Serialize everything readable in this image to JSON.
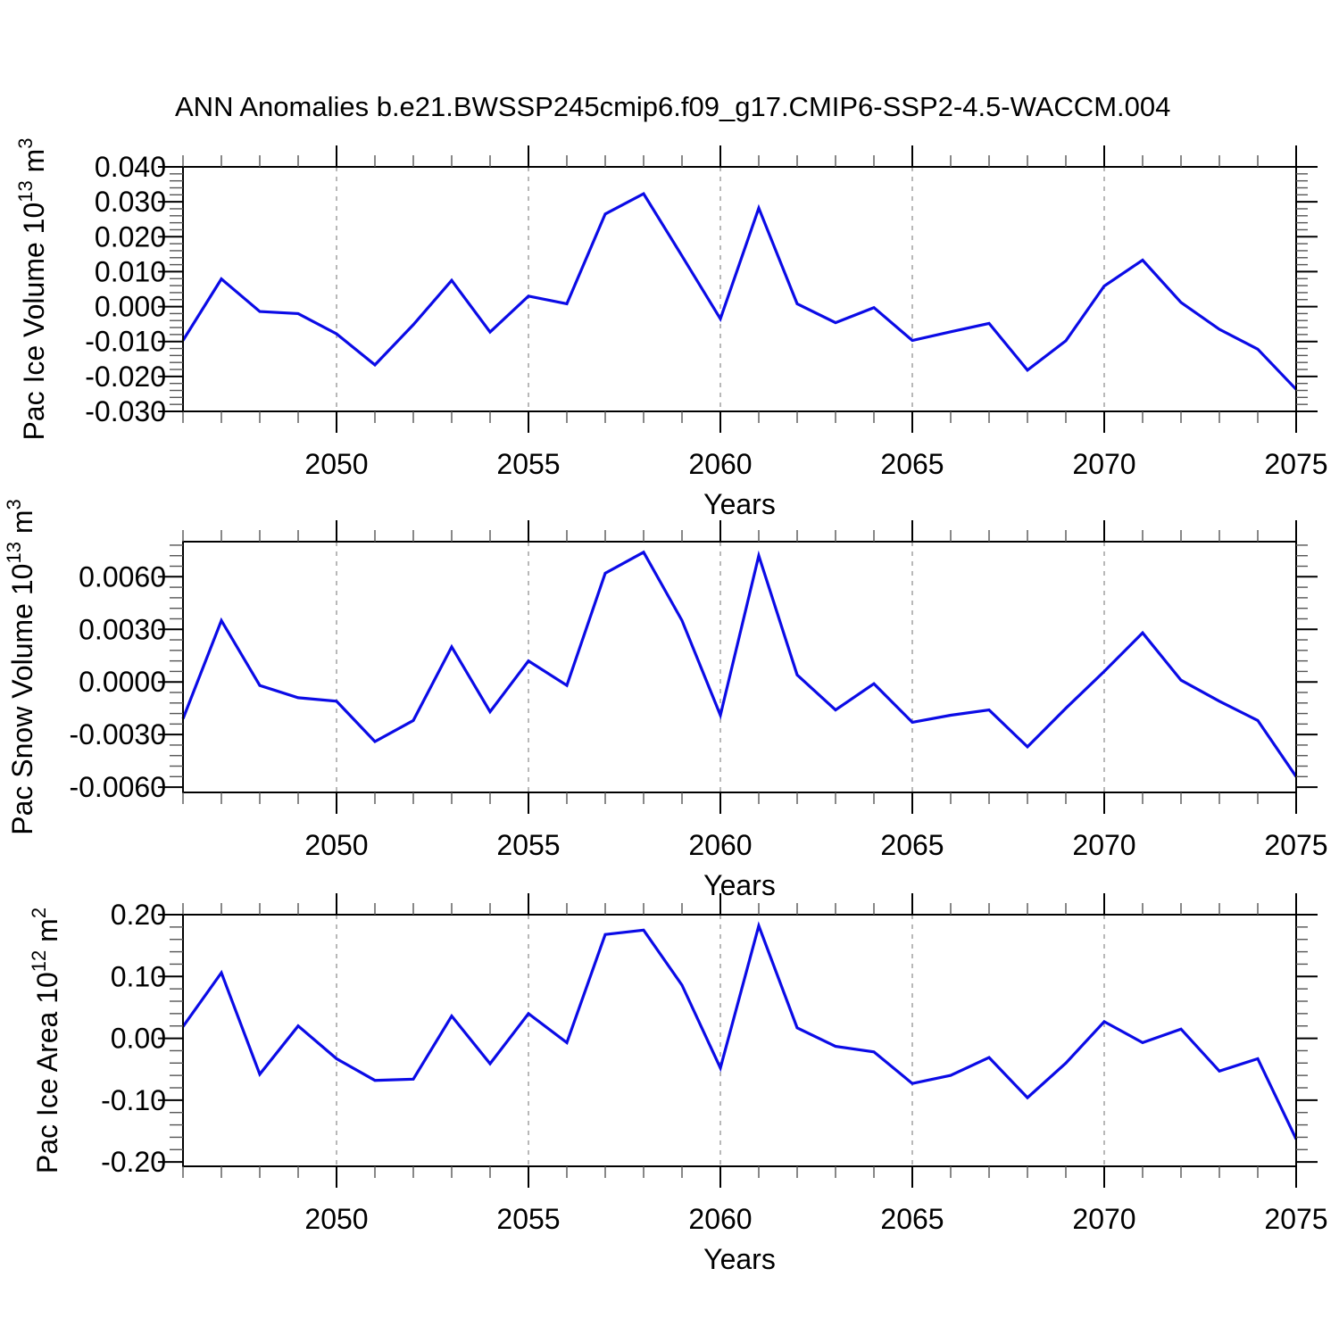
{
  "title": "ANN Anomalies b.e21.BWSSP245cmip6.f09_g17.CMIP6-SSP2-4.5-WACCM.004",
  "colors": {
    "line": "#0b0be6",
    "grid": "#999999",
    "axis": "#000000",
    "minor_tick": "#555555",
    "text": "#000000",
    "background": "#ffffff"
  },
  "chart_data": [
    {
      "type": "line",
      "name": "pac-ice-volume",
      "xlabel": "Years",
      "ylabel_parts": [
        {
          "t": "Pac Ice Volume 10"
        },
        {
          "t": "13",
          "sup": true
        },
        {
          "t": " m"
        },
        {
          "t": "3",
          "sup": true
        }
      ],
      "x": [
        2046,
        2047,
        2048,
        2049,
        2050,
        2051,
        2052,
        2053,
        2054,
        2055,
        2056,
        2057,
        2058,
        2059,
        2060,
        2061,
        2062,
        2063,
        2064,
        2065,
        2066,
        2067,
        2068,
        2069,
        2070,
        2071,
        2072,
        2073,
        2074,
        2075
      ],
      "y": [
        -0.0097,
        0.0079,
        -0.0014,
        -0.002,
        -0.0078,
        -0.0167,
        -0.0052,
        0.0075,
        -0.0073,
        0.003,
        0.0008,
        0.0265,
        0.0323,
        0.0145,
        -0.0035,
        0.0282,
        0.0008,
        -0.0046,
        -0.0003,
        -0.0097,
        -0.0072,
        -0.0048,
        -0.0182,
        -0.0098,
        0.0059,
        0.0133,
        0.0012,
        -0.0065,
        -0.0122,
        -0.0237
      ],
      "xlim": [
        2046,
        2075
      ],
      "ylim": [
        -0.03,
        0.04
      ],
      "xticks": [
        {
          "v": 2050,
          "label": "2050"
        },
        {
          "v": 2055,
          "label": "2055"
        },
        {
          "v": 2060,
          "label": "2060"
        },
        {
          "v": 2065,
          "label": "2065"
        },
        {
          "v": 2070,
          "label": "2070"
        },
        {
          "v": 2075,
          "label": "2075"
        }
      ],
      "x_minor_step": 1,
      "grid_x": [
        2050,
        2055,
        2060,
        2065,
        2070
      ],
      "yticks": [
        {
          "v": 0.04,
          "label": "0.040"
        },
        {
          "v": 0.03,
          "label": "0.030"
        },
        {
          "v": 0.02,
          "label": "0.020"
        },
        {
          "v": 0.01,
          "label": "0.010"
        },
        {
          "v": 0.0,
          "label": "0.000"
        },
        {
          "v": -0.01,
          "label": "-0.010"
        },
        {
          "v": -0.02,
          "label": "-0.020"
        },
        {
          "v": -0.03,
          "label": "-0.030"
        }
      ],
      "y_minor_step": 0.002
    },
    {
      "type": "line",
      "name": "pac-snow-volume",
      "xlabel": "Years",
      "ylabel_parts": [
        {
          "t": "Pac Snow Volume 10"
        },
        {
          "t": "13",
          "sup": true
        },
        {
          "t": " m"
        },
        {
          "t": "3",
          "sup": true
        }
      ],
      "x": [
        2046,
        2047,
        2048,
        2049,
        2050,
        2051,
        2052,
        2053,
        2054,
        2055,
        2056,
        2057,
        2058,
        2059,
        2060,
        2061,
        2062,
        2063,
        2064,
        2065,
        2066,
        2067,
        2068,
        2069,
        2070,
        2071,
        2072,
        2073,
        2074,
        2075
      ],
      "y": [
        -0.0021,
        0.0035,
        -0.0002,
        -0.0009,
        -0.0011,
        -0.0034,
        -0.0022,
        0.002,
        -0.0017,
        0.0012,
        -0.0002,
        0.0062,
        0.0074,
        0.0035,
        -0.0019,
        0.0072,
        0.0004,
        -0.0016,
        -0.0001,
        -0.0023,
        -0.0019,
        -0.0016,
        -0.0037,
        -0.0015,
        0.0006,
        0.0028,
        0.0001,
        -0.0011,
        -0.0022,
        -0.0054
      ],
      "xlim": [
        2046,
        2075
      ],
      "ylim": [
        -0.0063,
        0.008
      ],
      "xticks": [
        {
          "v": 2050,
          "label": "2050"
        },
        {
          "v": 2055,
          "label": "2055"
        },
        {
          "v": 2060,
          "label": "2060"
        },
        {
          "v": 2065,
          "label": "2065"
        },
        {
          "v": 2070,
          "label": "2070"
        },
        {
          "v": 2075,
          "label": "2075"
        }
      ],
      "x_minor_step": 1,
      "grid_x": [
        2050,
        2055,
        2060,
        2065,
        2070
      ],
      "yticks": [
        {
          "v": 0.006,
          "label": "0.0060"
        },
        {
          "v": 0.003,
          "label": "0.0030"
        },
        {
          "v": 0.0,
          "label": "0.0000"
        },
        {
          "v": -0.003,
          "label": "-0.0030"
        },
        {
          "v": -0.006,
          "label": "-0.0060"
        }
      ],
      "y_minor_step": 0.0006
    },
    {
      "type": "line",
      "name": "pac-ice-area",
      "xlabel": "Years",
      "ylabel_parts": [
        {
          "t": "Pac Ice Area 10"
        },
        {
          "t": "12",
          "sup": true
        },
        {
          "t": " m"
        },
        {
          "t": "2",
          "sup": true
        }
      ],
      "x": [
        2046,
        2047,
        2048,
        2049,
        2050,
        2051,
        2052,
        2053,
        2054,
        2055,
        2056,
        2057,
        2058,
        2059,
        2060,
        2061,
        2062,
        2063,
        2064,
        2065,
        2066,
        2067,
        2068,
        2069,
        2070,
        2071,
        2072,
        2073,
        2074,
        2075
      ],
      "y": [
        0.019,
        0.106,
        -0.058,
        0.02,
        -0.033,
        -0.068,
        -0.066,
        0.036,
        -0.041,
        0.04,
        -0.007,
        0.168,
        0.175,
        0.086,
        -0.048,
        0.182,
        0.017,
        -0.013,
        -0.022,
        -0.073,
        -0.06,
        -0.031,
        -0.096,
        -0.04,
        0.027,
        -0.007,
        0.015,
        -0.053,
        -0.033,
        -0.163
      ],
      "xlim": [
        2046,
        2075
      ],
      "ylim": [
        -0.207,
        0.2
      ],
      "xticks": [
        {
          "v": 2050,
          "label": "2050"
        },
        {
          "v": 2055,
          "label": "2055"
        },
        {
          "v": 2060,
          "label": "2060"
        },
        {
          "v": 2065,
          "label": "2065"
        },
        {
          "v": 2070,
          "label": "2070"
        },
        {
          "v": 2075,
          "label": "2075"
        }
      ],
      "x_minor_step": 1,
      "grid_x": [
        2050,
        2055,
        2060,
        2065,
        2070
      ],
      "yticks": [
        {
          "v": 0.2,
          "label": "0.20"
        },
        {
          "v": 0.1,
          "label": "0.10"
        },
        {
          "v": 0.0,
          "label": "0.00"
        },
        {
          "v": -0.1,
          "label": "-0.10"
        },
        {
          "v": -0.2,
          "label": "-0.20"
        }
      ],
      "y_minor_step": 0.02
    }
  ]
}
